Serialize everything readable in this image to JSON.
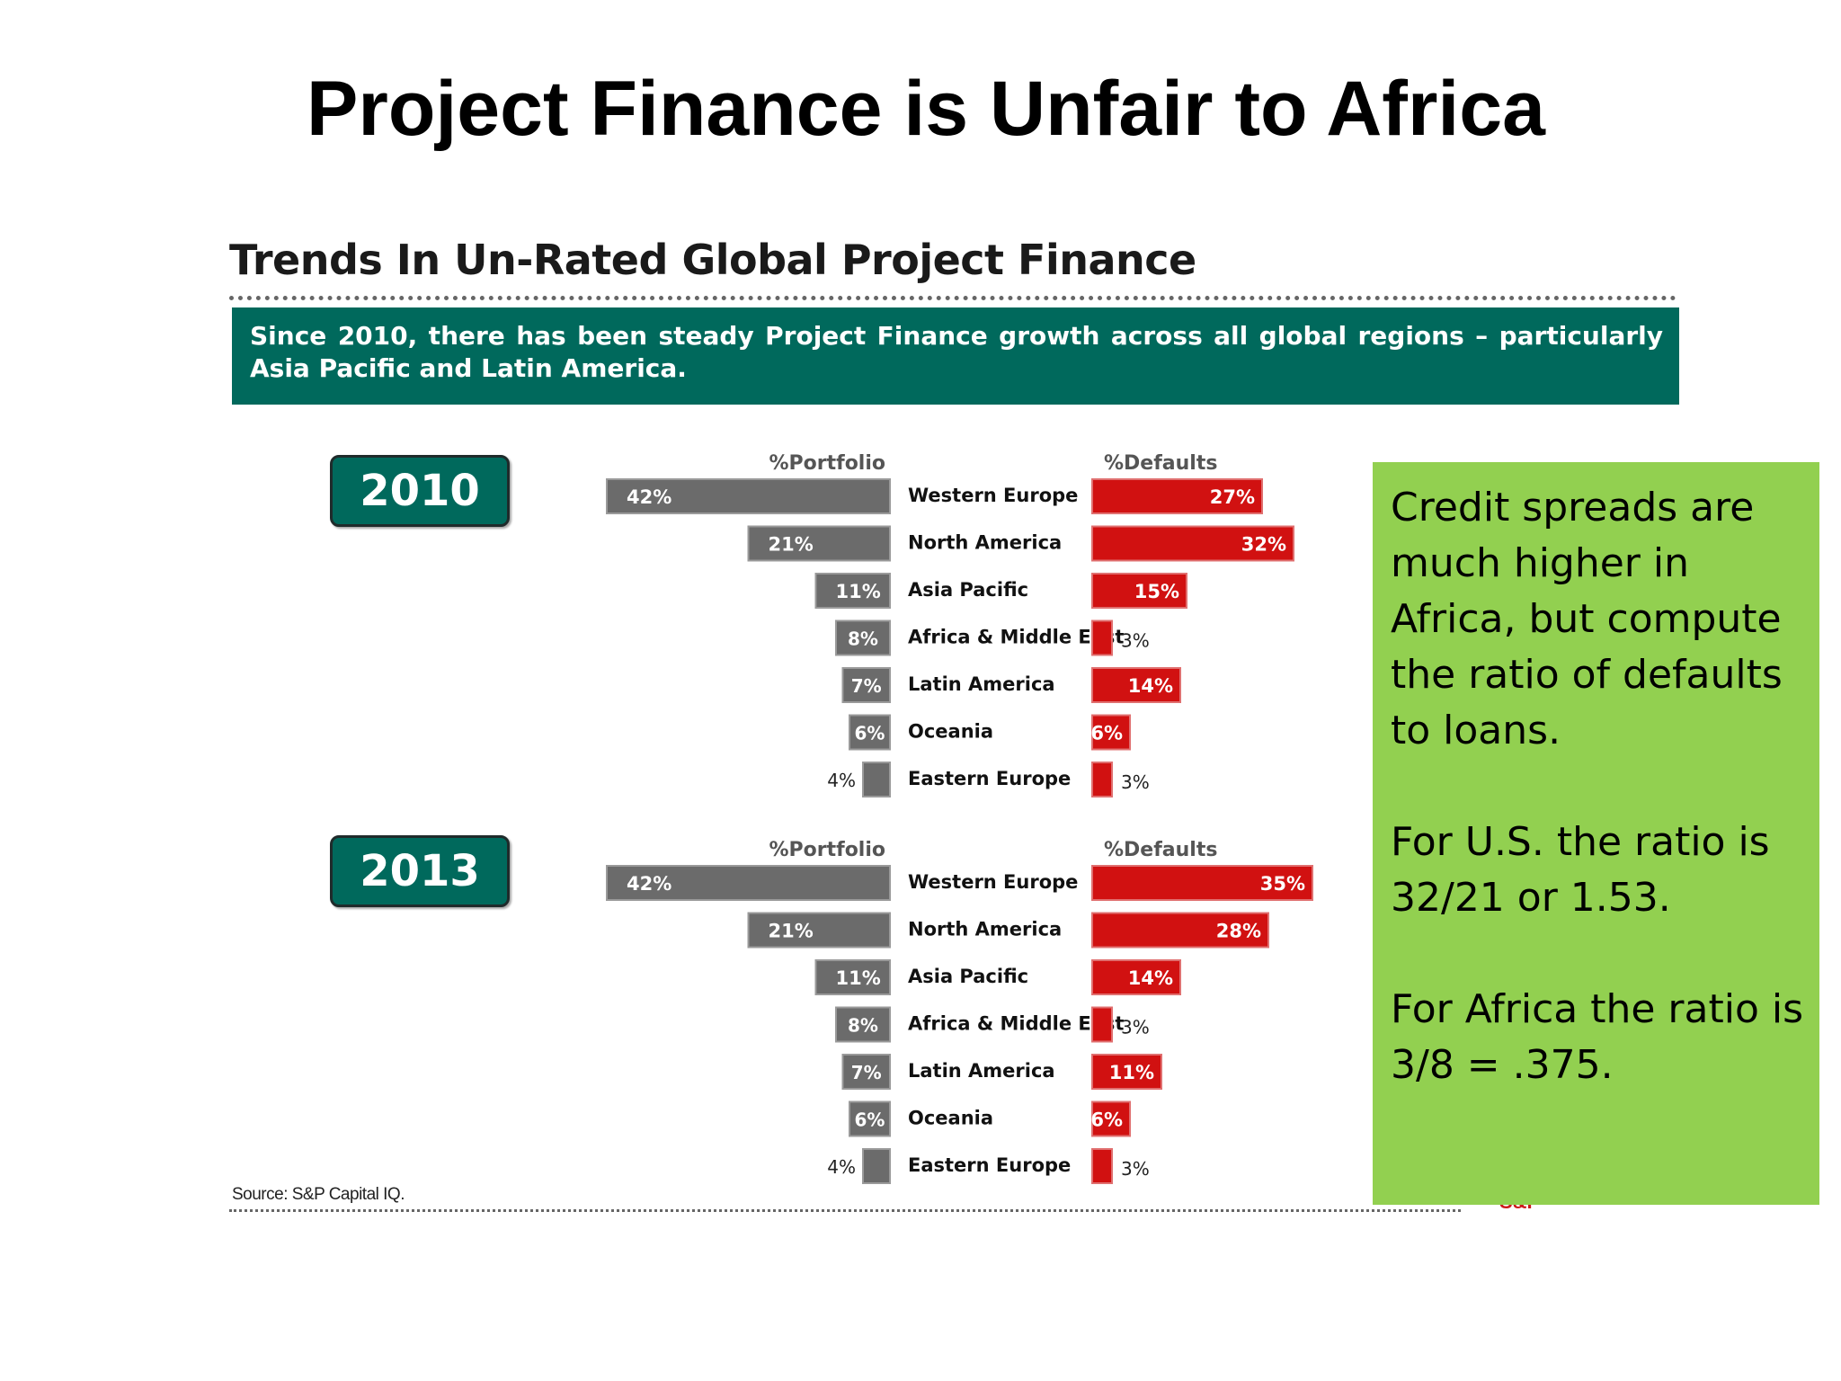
{
  "slide": {
    "title": "Project Finance is Unfair to Africa"
  },
  "chart_header": {
    "title": "Trends In Un-Rated Global Project Finance",
    "banner": "Since 2010, there has been steady Project Finance growth across all global regions – particularly Asia Pacific and Latin America."
  },
  "source": "Source: S&P Capital IQ.",
  "logo_fragment": "S&P",
  "note": {
    "p1": "Credit spreads are much higher in Africa, but compute the ratio of defaults to loans.",
    "p2": "For U.S. the ratio is 32/21 or 1.53.",
    "p3": "For Africa the ratio is 3/8 = .375."
  },
  "colors": {
    "portfolio_bar": "#6b6b6b",
    "defaults_bar": "#d11111",
    "badge": "#00695c",
    "note_bg": "#92d050"
  },
  "chart_data": [
    {
      "type": "bar",
      "year": "2010",
      "portfolio_label": "%Portfolio",
      "defaults_label": "%Defaults",
      "categories": [
        "Western Europe",
        "North America",
        "Asia Pacific",
        "Africa & Middle East",
        "Latin America",
        "Oceania",
        "Eastern Europe"
      ],
      "series": [
        {
          "name": "%Portfolio",
          "values": [
            42,
            21,
            11,
            8,
            7,
            6,
            4
          ]
        },
        {
          "name": "%Defaults",
          "values": [
            27,
            32,
            15,
            3,
            14,
            6,
            3
          ]
        }
      ]
    },
    {
      "type": "bar",
      "year": "2013",
      "portfolio_label": "%Portfolio",
      "defaults_label": "%Defaults",
      "categories": [
        "Western Europe",
        "North America",
        "Asia Pacific",
        "Africa & Middle East",
        "Latin America",
        "Oceania",
        "Eastern Europe"
      ],
      "series": [
        {
          "name": "%Portfolio",
          "values": [
            42,
            21,
            11,
            8,
            7,
            6,
            4
          ]
        },
        {
          "name": "%Defaults",
          "values": [
            35,
            28,
            14,
            3,
            11,
            6,
            3
          ]
        }
      ]
    }
  ]
}
